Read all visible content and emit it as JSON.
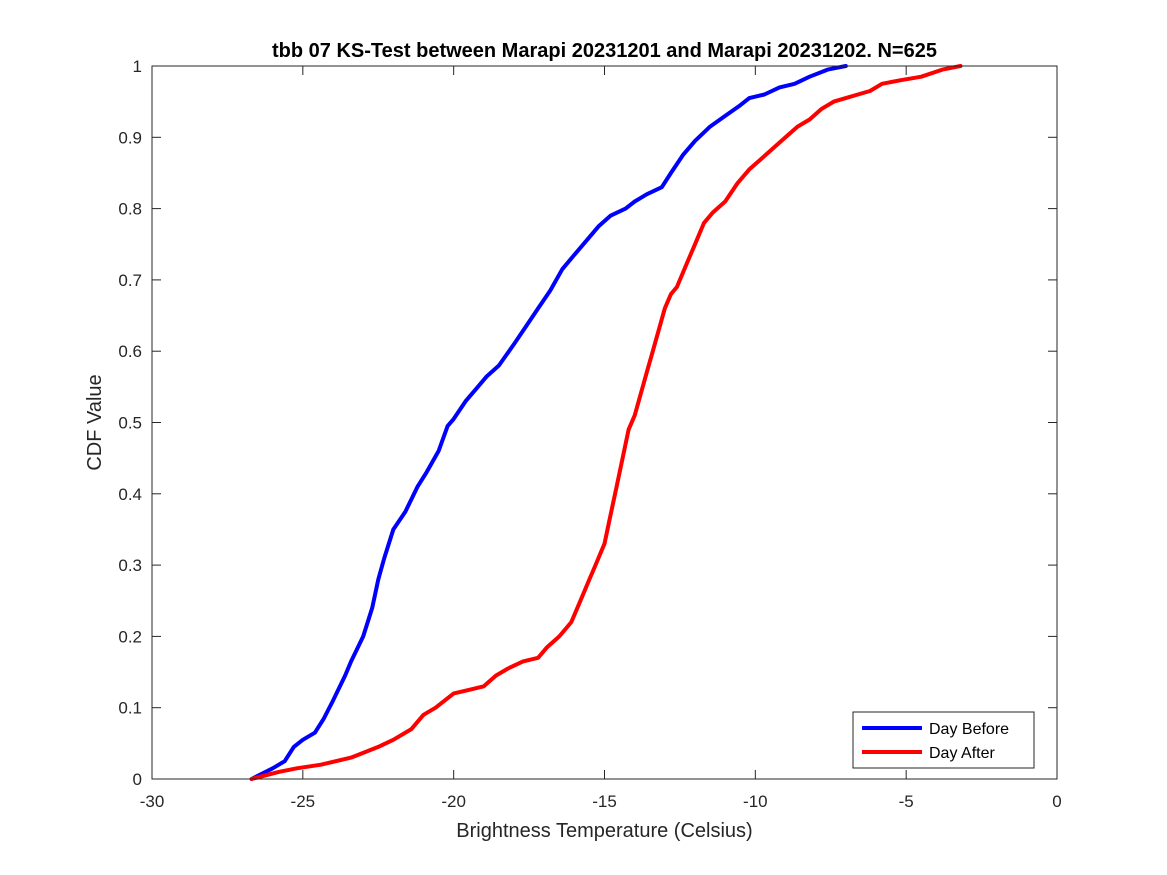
{
  "chart_data": {
    "type": "line",
    "title": "tbb 07 KS-Test between Marapi 20231201 and Marapi 20231202. N=625",
    "xlabel": "Brightness Temperature (Celsius)",
    "ylabel": "CDF Value",
    "xlim": [
      -30,
      0
    ],
    "ylim": [
      0,
      1
    ],
    "xticks": [
      -30,
      -25,
      -20,
      -15,
      -10,
      -5,
      0
    ],
    "xtick_labels": [
      "-30",
      "-25",
      "-20",
      "-15",
      "-10",
      "-5",
      "0"
    ],
    "yticks": [
      0,
      0.1,
      0.2,
      0.3,
      0.4,
      0.5,
      0.6,
      0.7,
      0.8,
      0.9,
      1
    ],
    "ytick_labels": [
      "0",
      "0.1",
      "0.2",
      "0.3",
      "0.4",
      "0.5",
      "0.6",
      "0.7",
      "0.8",
      "0.9",
      "1"
    ],
    "grid": false,
    "legend_position": "bottom-right",
    "series": [
      {
        "name": "Day Before",
        "color": "#0000ff",
        "x": [
          -26.7,
          -26.0,
          -25.6,
          -25.3,
          -25.0,
          -24.6,
          -24.3,
          -24.0,
          -23.6,
          -23.4,
          -23.0,
          -22.7,
          -22.5,
          -22.3,
          -22.0,
          -21.6,
          -21.2,
          -20.9,
          -20.5,
          -20.2,
          -20.0,
          -19.6,
          -19.3,
          -18.9,
          -18.5,
          -18.0,
          -17.6,
          -17.2,
          -16.8,
          -16.4,
          -16.0,
          -15.6,
          -15.2,
          -14.8,
          -14.3,
          -14.0,
          -13.6,
          -13.1,
          -12.8,
          -12.4,
          -12.0,
          -11.5,
          -11.0,
          -10.5,
          -10.2,
          -9.7,
          -9.2,
          -8.7,
          -8.2,
          -7.6,
          -7.0
        ],
        "y": [
          0.0,
          0.015,
          0.025,
          0.045,
          0.055,
          0.065,
          0.085,
          0.11,
          0.145,
          0.165,
          0.2,
          0.24,
          0.28,
          0.31,
          0.35,
          0.375,
          0.41,
          0.43,
          0.46,
          0.495,
          0.505,
          0.53,
          0.545,
          0.565,
          0.58,
          0.61,
          0.635,
          0.66,
          0.685,
          0.715,
          0.735,
          0.755,
          0.775,
          0.79,
          0.8,
          0.81,
          0.82,
          0.83,
          0.85,
          0.875,
          0.895,
          0.915,
          0.93,
          0.945,
          0.955,
          0.96,
          0.97,
          0.975,
          0.985,
          0.995,
          1.0
        ]
      },
      {
        "name": "Day After",
        "color": "#ff0000",
        "x": [
          -26.7,
          -25.8,
          -25.2,
          -24.4,
          -23.4,
          -22.5,
          -22.0,
          -21.4,
          -21.0,
          -20.6,
          -20.0,
          -19.5,
          -19.0,
          -18.6,
          -18.2,
          -17.7,
          -17.2,
          -16.9,
          -16.5,
          -16.1,
          -15.8,
          -15.5,
          -15.3,
          -15.0,
          -14.8,
          -14.6,
          -14.4,
          -14.2,
          -14.0,
          -13.8,
          -13.6,
          -13.4,
          -13.2,
          -13.0,
          -12.8,
          -12.6,
          -12.3,
          -12.0,
          -11.7,
          -11.4,
          -11.0,
          -10.6,
          -10.2,
          -9.8,
          -9.4,
          -9.0,
          -8.6,
          -8.2,
          -7.8,
          -7.4,
          -7.0,
          -6.6,
          -6.2,
          -5.8,
          -5.2,
          -4.5,
          -3.8,
          -3.2
        ],
        "y": [
          0.0,
          0.01,
          0.015,
          0.02,
          0.03,
          0.045,
          0.055,
          0.07,
          0.09,
          0.1,
          0.12,
          0.125,
          0.13,
          0.145,
          0.155,
          0.165,
          0.17,
          0.185,
          0.2,
          0.22,
          0.25,
          0.28,
          0.3,
          0.33,
          0.37,
          0.41,
          0.45,
          0.49,
          0.51,
          0.54,
          0.57,
          0.6,
          0.63,
          0.66,
          0.68,
          0.69,
          0.72,
          0.75,
          0.78,
          0.795,
          0.81,
          0.835,
          0.855,
          0.87,
          0.885,
          0.9,
          0.915,
          0.925,
          0.94,
          0.95,
          0.955,
          0.96,
          0.965,
          0.975,
          0.98,
          0.985,
          0.995,
          1.0
        ]
      }
    ]
  }
}
